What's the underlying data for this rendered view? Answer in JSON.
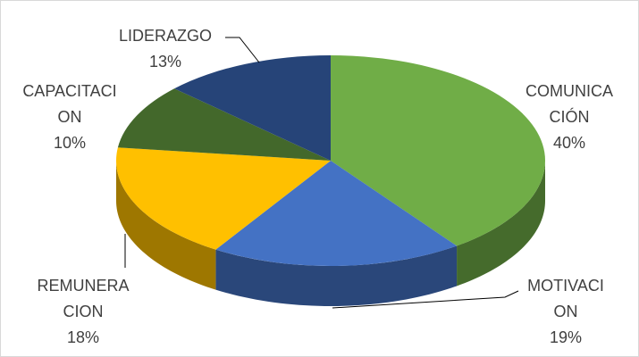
{
  "chart_data": {
    "type": "pie3d",
    "categories": [
      "COMUNICACIÓN",
      "MOTIVACION",
      "REMUNERACION",
      "CAPACITACION",
      "LIDERAZGO"
    ],
    "values": [
      40,
      19,
      18,
      10,
      13
    ],
    "value_labels": [
      "40%",
      "19%",
      "18%",
      "10%",
      "13%"
    ],
    "colors": [
      "#70ad47",
      "#4472c4",
      "#ffc000",
      "#43682b",
      "#264478"
    ]
  }
}
